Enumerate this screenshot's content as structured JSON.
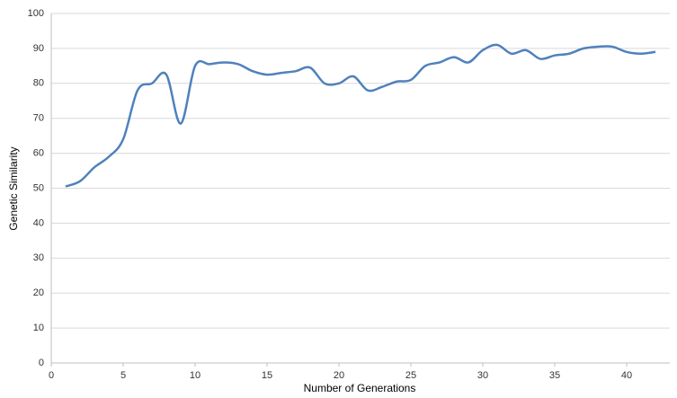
{
  "chart_data": {
    "type": "line",
    "x_label": "Number of Generations",
    "y_label": "Genetic Similarity",
    "x": [
      1,
      2,
      3,
      4,
      5,
      6,
      7,
      8,
      9,
      10,
      11,
      12,
      13,
      14,
      15,
      16,
      17,
      18,
      19,
      20,
      21,
      22,
      23,
      24,
      25,
      26,
      27,
      28,
      29,
      30,
      31,
      32,
      33,
      34,
      35,
      36,
      37,
      38,
      39,
      40,
      41,
      42
    ],
    "series": [
      {
        "color": "#4f81bd",
        "values": [
          50.5,
          52,
          56,
          59,
          64,
          78,
          80,
          82.5,
          68.5,
          85,
          85.5,
          86,
          85.5,
          83.5,
          82.5,
          83,
          83.5,
          84.5,
          80,
          80,
          82,
          78,
          79,
          80.5,
          81,
          85,
          86,
          87.5,
          86,
          89.5,
          91,
          88.5,
          89.5,
          87,
          88,
          88.5,
          90,
          90.5,
          90.5,
          89,
          88.5,
          89
        ]
      }
    ],
    "xlim": [
      0,
      43
    ],
    "xticks": [
      0,
      5,
      10,
      15,
      20,
      25,
      30,
      35,
      40
    ],
    "ylim": [
      0,
      100
    ],
    "yticks": [
      0,
      10,
      20,
      30,
      40,
      50,
      60,
      70,
      80,
      90,
      100
    ],
    "grid": true,
    "smooth": true
  }
}
